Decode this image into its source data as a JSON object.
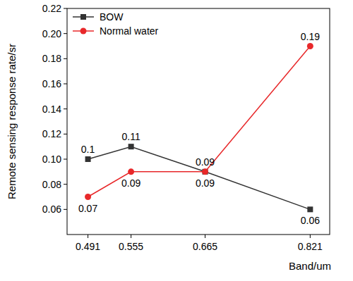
{
  "chart_data": {
    "type": "line",
    "x_label": "Band/um",
    "y_label": "Remote sensing response rate/sr",
    "x": [
      0.491,
      0.555,
      0.665,
      0.821
    ],
    "xlim": [
      0.46,
      0.85
    ],
    "xticks": [
      0.491,
      0.555,
      0.665,
      0.821
    ],
    "ylim": [
      0.04,
      0.22
    ],
    "yticks": [
      0.06,
      0.08,
      {
        "value": 0.1,
        "label": "0.10"
      },
      0.12,
      0.14,
      0.16,
      0.18,
      {
        "value": 0.2,
        "label": "0.20"
      },
      0.22
    ],
    "series": [
      {
        "name": "BOW",
        "color": "#333333",
        "marker": "square",
        "values": [
          0.1,
          0.11,
          0.09,
          0.06
        ]
      },
      {
        "name": "Normal water",
        "color": "#e8282a",
        "marker": "circle",
        "values": [
          0.07,
          0.09,
          0.09,
          0.19
        ]
      }
    ],
    "data_labels": true,
    "legend": "upper left",
    "grid": false
  }
}
